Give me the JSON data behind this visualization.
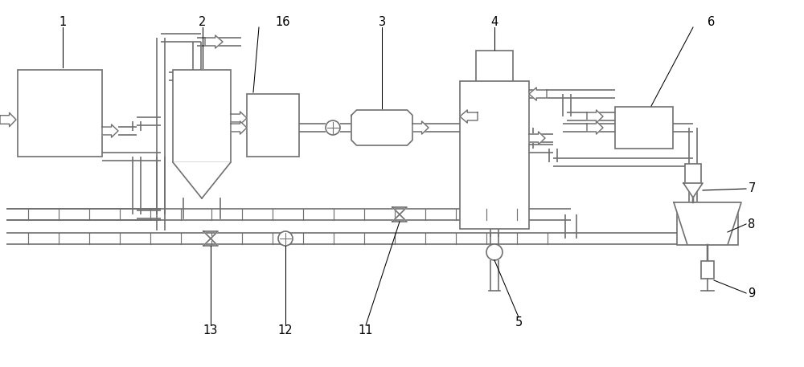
{
  "bg": "#ffffff",
  "lc": "#707070",
  "lw": 1.2,
  "fw": 10.0,
  "fh": 4.57,
  "xmax": 10.0,
  "ymax": 4.57
}
